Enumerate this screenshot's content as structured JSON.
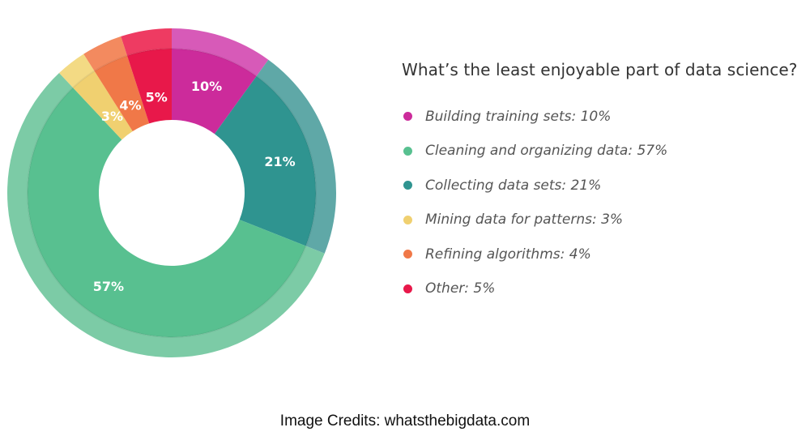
{
  "chart_data": {
    "type": "pie",
    "title": "What’s the least enjoyable part of data science?",
    "categories": [
      "Building training sets",
      "Collecting data sets",
      "Cleaning and organizing data",
      "Mining data for patterns",
      "Refining algorithms",
      "Other"
    ],
    "values": [
      10,
      21,
      57,
      3,
      4,
      5
    ],
    "value_labels": [
      "10%",
      "21%",
      "57%",
      "3%",
      "4%",
      "5%"
    ],
    "colors": [
      "#cc2b9b",
      "#2f9490",
      "#58c090",
      "#f0d070",
      "#f07848",
      "#e8184a"
    ],
    "outer_colors": [
      "#d75ab8",
      "#5fa8a7",
      "#7ccba6",
      "#f3da84",
      "#f38a5f",
      "#ee3b62"
    ],
    "start": "top, clockwise, Building training sets first",
    "legend_position": "right"
  },
  "legend": {
    "items": [
      {
        "label": "Building training sets: 10%",
        "color": "#cc2b9b"
      },
      {
        "label": "Cleaning and organizing data: 57%",
        "color": "#58c090"
      },
      {
        "label": "Collecting data sets: 21%",
        "color": "#2f9490"
      },
      {
        "label": "Mining data for patterns: 3%",
        "color": "#f0d070"
      },
      {
        "label": "Refining algorithms: 4%",
        "color": "#f07848"
      },
      {
        "label": "Other: 5%",
        "color": "#e8184a"
      }
    ]
  },
  "footer": {
    "credits": "Image Credits: whatsthebigdata.com"
  }
}
